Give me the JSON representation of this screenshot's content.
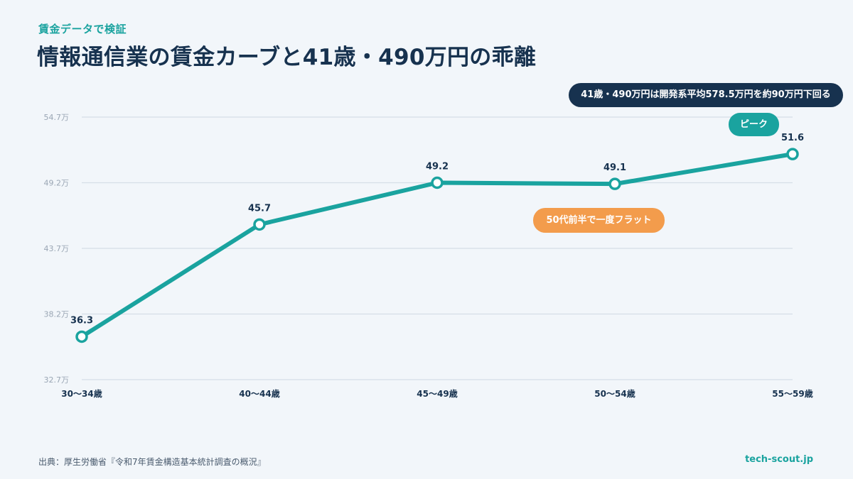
{
  "header": {
    "eyebrow": "賃金データで検証",
    "title": "情報通信業の賃金カーブと41歳・490万円の乖離"
  },
  "annotations": {
    "note": "41歳・490万円は開発系平均578.5万円を約90万円下回る",
    "peak": "ピーク",
    "flat": "50代前半で一度フラット"
  },
  "footer": {
    "source": "出典：厚生労働省『令和7年賃金構造基本統計調査の概況』",
    "brand": "tech-scout.jp"
  },
  "colors": {
    "line": "#1aa39f",
    "title": "#17324f",
    "accent_orange": "#f39c4c",
    "grid": "#d6dee7",
    "background": "#f2f6fa"
  },
  "chart_data": {
    "type": "line",
    "categories": [
      "30～34歳",
      "40～44歳",
      "45～49歳",
      "50～54歳",
      "55～59歳"
    ],
    "values": [
      36.3,
      45.7,
      49.2,
      49.1,
      51.6
    ],
    "data_labels": [
      "36.3",
      "45.7",
      "49.2",
      "49.1",
      "51.6"
    ],
    "yticks": [
      32.7,
      38.2,
      43.7,
      49.2,
      54.7
    ],
    "ytick_labels": [
      "32.7万",
      "38.2万",
      "43.7万",
      "49.2万",
      "54.7万"
    ],
    "ylim": [
      32.7,
      54.7
    ],
    "grid": true
  }
}
